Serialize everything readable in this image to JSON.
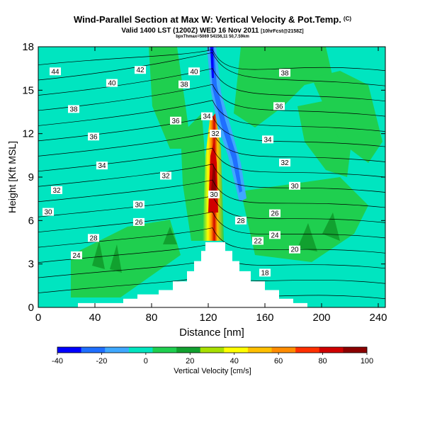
{
  "header": {
    "title": "Wind-Parallel Section at Max W: Vertical Velocity & Pot.Temp.",
    "title_mark": "(C)",
    "subtitle": "Valid 1400 LST (1200Z) WED 16 Nov 2011",
    "subtitle_extra": "[10hrFcst@2158Z]",
    "subtitle2": "bpxThmax=5069 54156,11 50,7.59km"
  },
  "chart_data": {
    "type": "heatmap",
    "xlabel": "Distance [nm]",
    "ylabel": "Height [Kft MSL]",
    "xlim": [
      0,
      245
    ],
    "ylim": [
      0,
      18
    ],
    "x_ticks": [
      0,
      40,
      80,
      120,
      160,
      200,
      240
    ],
    "y_ticks": [
      0,
      3,
      6,
      9,
      12,
      15,
      18
    ],
    "colorbar": {
      "label": "Vertical Velocity [cm/s]",
      "ticks": [
        -40,
        -20,
        0,
        20,
        40,
        60,
        80,
        100
      ],
      "colors": [
        "#0000ff",
        "#1f6fff",
        "#3fa8ff",
        "#00e5c0",
        "#1fcf4f",
        "#11a12f",
        "#a8e000",
        "#ffff00",
        "#ffc000",
        "#ff8c00",
        "#ff3000",
        "#d00000",
        "#8b0000"
      ]
    },
    "terrain": [
      [
        0,
        0.0
      ],
      [
        25,
        0.0
      ],
      [
        28,
        0.3
      ],
      [
        60,
        0.6
      ],
      [
        70,
        0.9
      ],
      [
        85,
        1.2
      ],
      [
        95,
        1.8
      ],
      [
        105,
        2.5
      ],
      [
        110,
        3.2
      ],
      [
        115,
        3.9
      ],
      [
        118,
        4.5
      ],
      [
        128,
        4.5
      ],
      [
        132,
        3.9
      ],
      [
        137,
        3.2
      ],
      [
        142,
        2.5
      ],
      [
        150,
        1.8
      ],
      [
        160,
        1.2
      ],
      [
        170,
        0.6
      ],
      [
        180,
        0.3
      ],
      [
        190,
        0.0
      ],
      [
        245,
        0.0
      ]
    ],
    "contour_labels": [
      {
        "text": "44",
        "x": 12,
        "y": 16.3
      },
      {
        "text": "42",
        "x": 72,
        "y": 16.4
      },
      {
        "text": "40",
        "x": 110,
        "y": 16.3
      },
      {
        "text": "40",
        "x": 52,
        "y": 15.5
      },
      {
        "text": "38",
        "x": 103,
        "y": 15.4
      },
      {
        "text": "38",
        "x": 174,
        "y": 16.2
      },
      {
        "text": "38",
        "x": 25,
        "y": 13.7
      },
      {
        "text": "36",
        "x": 97,
        "y": 12.9
      },
      {
        "text": "34",
        "x": 119,
        "y": 13.2
      },
      {
        "text": "36",
        "x": 170,
        "y": 13.9
      },
      {
        "text": "36",
        "x": 39,
        "y": 11.8
      },
      {
        "text": "32",
        "x": 125,
        "y": 12.0
      },
      {
        "text": "34",
        "x": 162,
        "y": 11.6
      },
      {
        "text": "34",
        "x": 45,
        "y": 9.8
      },
      {
        "text": "32",
        "x": 174,
        "y": 10.0
      },
      {
        "text": "32",
        "x": 90,
        "y": 9.1
      },
      {
        "text": "32",
        "x": 13,
        "y": 8.1
      },
      {
        "text": "30",
        "x": 124,
        "y": 7.8
      },
      {
        "text": "30",
        "x": 181,
        "y": 8.4
      },
      {
        "text": "30",
        "x": 7,
        "y": 6.6
      },
      {
        "text": "30",
        "x": 71,
        "y": 7.1
      },
      {
        "text": "26",
        "x": 71,
        "y": 5.9
      },
      {
        "text": "28",
        "x": 143,
        "y": 6.0
      },
      {
        "text": "26",
        "x": 167,
        "y": 6.5
      },
      {
        "text": "28",
        "x": 39,
        "y": 4.8
      },
      {
        "text": "24",
        "x": 167,
        "y": 5.0
      },
      {
        "text": "22",
        "x": 155,
        "y": 4.6
      },
      {
        "text": "20",
        "x": 181,
        "y": 4.0
      },
      {
        "text": "24",
        "x": 27,
        "y": 3.6
      },
      {
        "text": "18",
        "x": 160,
        "y": 2.4
      }
    ]
  }
}
